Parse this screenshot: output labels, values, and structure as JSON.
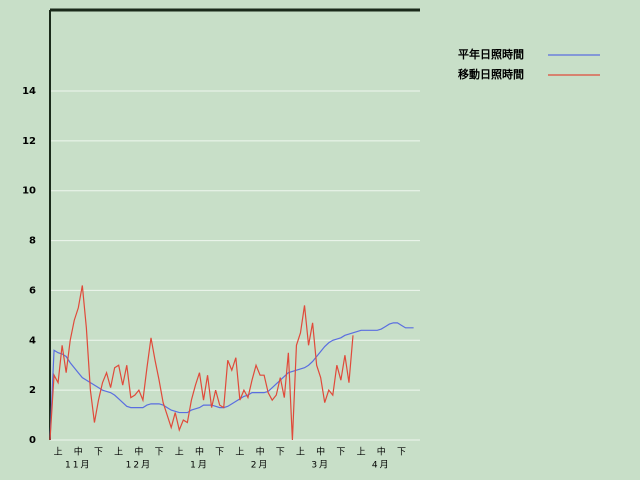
{
  "chart_data": {
    "type": "line",
    "categories": [
      null,
      null,
      "上",
      null,
      null,
      null,
      null,
      "中",
      null,
      null,
      null,
      null,
      "下",
      null,
      null,
      null,
      null,
      "上",
      null,
      null,
      null,
      null,
      "中",
      null,
      null,
      null,
      null,
      "下",
      null,
      null,
      null,
      null,
      "上",
      null,
      null,
      null,
      null,
      "中",
      null,
      null,
      null,
      null,
      "下",
      null,
      null,
      null,
      null,
      "上",
      null,
      null,
      null,
      null,
      "中",
      null,
      null,
      null,
      null,
      "下",
      null,
      null,
      null,
      null,
      "上",
      null,
      null,
      null,
      null,
      "中",
      null,
      null,
      null,
      null,
      "下",
      null,
      null,
      null,
      null,
      "上",
      null,
      null,
      null,
      null,
      "中",
      null,
      null,
      null,
      null,
      "下",
      null,
      null,
      null
    ],
    "month_labels": [
      "11月",
      "12月",
      "1月",
      "2月",
      "3月",
      "4月"
    ],
    "series": [
      {
        "name": "平年日照時間",
        "color": "#5a6ee0",
        "values": [
          0,
          3.6,
          3.5,
          3.45,
          3.35,
          3.1,
          2.9,
          2.7,
          2.5,
          2.4,
          2.3,
          2.2,
          2.1,
          2.0,
          1.95,
          1.9,
          1.8,
          1.65,
          1.5,
          1.35,
          1.3,
          1.3,
          1.3,
          1.3,
          1.4,
          1.45,
          1.45,
          1.45,
          1.4,
          1.3,
          1.2,
          1.15,
          1.1,
          1.1,
          1.1,
          1.2,
          1.25,
          1.3,
          1.4,
          1.4,
          1.4,
          1.35,
          1.3,
          1.3,
          1.35,
          1.45,
          1.55,
          1.65,
          1.75,
          1.8,
          1.9,
          1.9,
          1.9,
          1.9,
          1.95,
          2.1,
          2.25,
          2.4,
          2.55,
          2.7,
          2.75,
          2.8,
          2.85,
          2.9,
          3.0,
          3.15,
          3.35,
          3.55,
          3.75,
          3.9,
          4.0,
          4.05,
          4.1,
          4.2,
          4.25,
          4.3,
          4.35,
          4.4,
          4.4,
          4.4,
          4.4,
          4.4,
          4.45,
          4.55,
          4.65,
          4.7,
          4.7,
          4.6,
          4.5,
          4.5,
          4.5
        ]
      },
      {
        "name": "移動日照時間",
        "color": "#e04a3a",
        "values": [
          0,
          2.6,
          2.3,
          3.8,
          2.7,
          4.0,
          4.8,
          5.3,
          6.2,
          4.5,
          2.0,
          0.7,
          1.6,
          2.3,
          2.7,
          2.1,
          2.9,
          3.0,
          2.2,
          3.0,
          1.7,
          1.8,
          2.0,
          1.6,
          2.9,
          4.1,
          3.2,
          2.4,
          1.5,
          1.0,
          0.5,
          1.1,
          0.4,
          0.8,
          0.7,
          1.6,
          2.2,
          2.7,
          1.6,
          2.6,
          1.3,
          2.0,
          1.4,
          1.3,
          3.2,
          2.8,
          3.3,
          1.6,
          2.0,
          1.7,
          2.4,
          3.0,
          2.6,
          2.6,
          1.9,
          1.6,
          1.8,
          2.5,
          1.7,
          3.5,
          0.0,
          3.8,
          4.3,
          5.4,
          3.8,
          4.7,
          3.0,
          2.5,
          1.5,
          2.0,
          1.8,
          3.0,
          2.4,
          3.4,
          2.3,
          4.2,
          null,
          null,
          null,
          null,
          null,
          null,
          null,
          null,
          null,
          null,
          null,
          null,
          null,
          null,
          null
        ]
      }
    ],
    "ylim": [
      0,
      17.25
    ],
    "yticks": [
      0,
      2,
      4,
      6,
      8,
      10,
      12,
      14
    ],
    "grid": true,
    "legend": "top-right"
  }
}
